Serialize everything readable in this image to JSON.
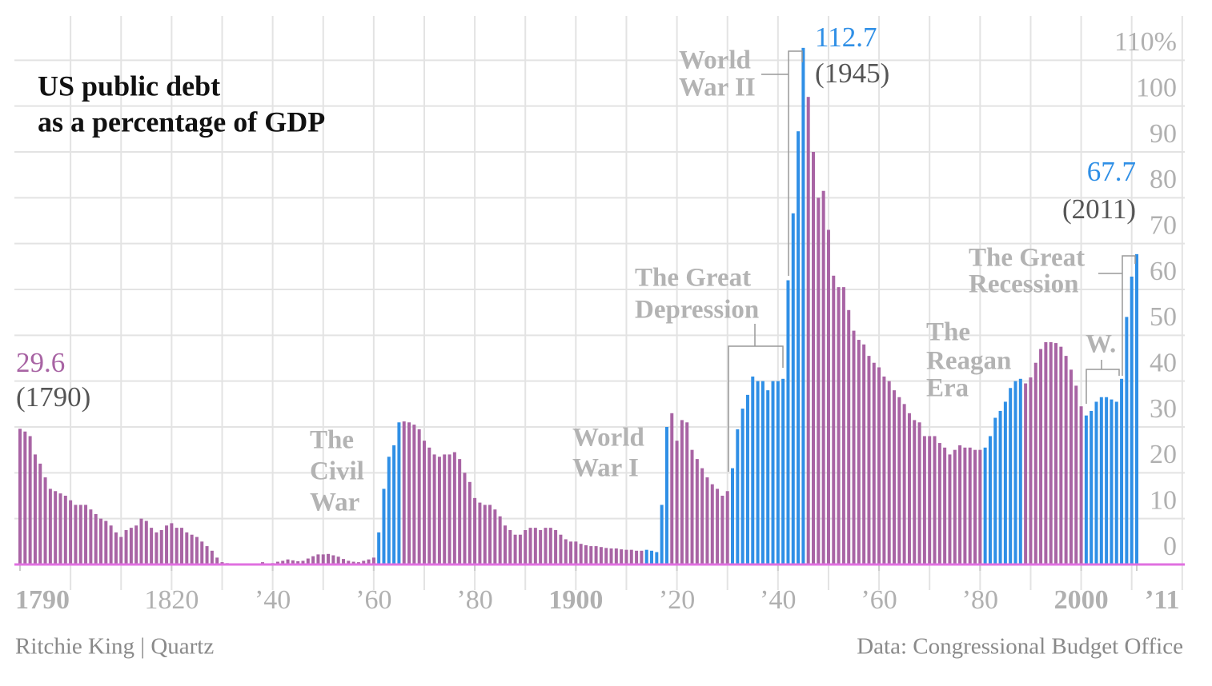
{
  "chart_data": {
    "type": "bar",
    "title": [
      "US public debt",
      "as a percentage of GDP"
    ],
    "source_left": "Ritchie King | Quartz",
    "source_right": "Data: Congressional Budget Office",
    "color": "#a864a4",
    "highlight_color": "#2f8fe6",
    "baseline_color": "#e070e0",
    "highlights": [
      {
        "from": 1861,
        "to": 1865
      },
      {
        "from": 1914,
        "to": 1918
      },
      {
        "from": 1931,
        "to": 1945
      },
      {
        "from": 1981,
        "to": 1988
      },
      {
        "from": 2001,
        "to": 2011
      }
    ],
    "x": [
      1790,
      1791,
      1792,
      1793,
      1794,
      1795,
      1796,
      1797,
      1798,
      1799,
      1800,
      1801,
      1802,
      1803,
      1804,
      1805,
      1806,
      1807,
      1808,
      1809,
      1810,
      1811,
      1812,
      1813,
      1814,
      1815,
      1816,
      1817,
      1818,
      1819,
      1820,
      1821,
      1822,
      1823,
      1824,
      1825,
      1826,
      1827,
      1828,
      1829,
      1830,
      1831,
      1832,
      1833,
      1834,
      1835,
      1836,
      1837,
      1838,
      1839,
      1840,
      1841,
      1842,
      1843,
      1844,
      1845,
      1846,
      1847,
      1848,
      1849,
      1850,
      1851,
      1852,
      1853,
      1854,
      1855,
      1856,
      1857,
      1858,
      1859,
      1860,
      1861,
      1862,
      1863,
      1864,
      1865,
      1866,
      1867,
      1868,
      1869,
      1870,
      1871,
      1872,
      1873,
      1874,
      1875,
      1876,
      1877,
      1878,
      1879,
      1880,
      1881,
      1882,
      1883,
      1884,
      1885,
      1886,
      1887,
      1888,
      1889,
      1890,
      1891,
      1892,
      1893,
      1894,
      1895,
      1896,
      1897,
      1898,
      1899,
      1900,
      1901,
      1902,
      1903,
      1904,
      1905,
      1906,
      1907,
      1908,
      1909,
      1910,
      1911,
      1912,
      1913,
      1914,
      1915,
      1916,
      1917,
      1918,
      1919,
      1920,
      1921,
      1922,
      1923,
      1924,
      1925,
      1926,
      1927,
      1928,
      1929,
      1930,
      1931,
      1932,
      1933,
      1934,
      1935,
      1936,
      1937,
      1938,
      1939,
      1940,
      1941,
      1942,
      1943,
      1944,
      1945,
      1946,
      1947,
      1948,
      1949,
      1950,
      1951,
      1952,
      1953,
      1954,
      1955,
      1956,
      1957,
      1958,
      1959,
      1960,
      1961,
      1962,
      1963,
      1964,
      1965,
      1966,
      1967,
      1968,
      1969,
      1970,
      1971,
      1972,
      1973,
      1974,
      1975,
      1976,
      1977,
      1978,
      1979,
      1980,
      1981,
      1982,
      1983,
      1984,
      1985,
      1986,
      1987,
      1988,
      1989,
      1990,
      1991,
      1992,
      1993,
      1994,
      1995,
      1996,
      1997,
      1998,
      1999,
      2000,
      2001,
      2002,
      2003,
      2004,
      2005,
      2006,
      2007,
      2008,
      2009,
      2010,
      2011
    ],
    "values": [
      29.6,
      29,
      28,
      24,
      22,
      19,
      16.5,
      16,
      15.5,
      15,
      14,
      13,
      13,
      13,
      12,
      11,
      10,
      9.5,
      8.5,
      7,
      6,
      7.5,
      8,
      8.5,
      10,
      9.5,
      8,
      7,
      7.5,
      8.5,
      9,
      8,
      8,
      7,
      6.5,
      6,
      5,
      4,
      3,
      1.5,
      0.5,
      0.3,
      0.2,
      0.1,
      0,
      0,
      0,
      0.1,
      0.5,
      0.2,
      0.3,
      0.6,
      0.8,
      1.1,
      0.9,
      0.7,
      0.8,
      1.3,
      1.8,
      2.2,
      2.2,
      2.3,
      2,
      1.7,
      1.2,
      0.8,
      0.6,
      0.5,
      0.8,
      1.1,
      1.5,
      7,
      16.5,
      23.5,
      26,
      31,
      31.2,
      31,
      30.5,
      29.5,
      27,
      25.5,
      24,
      23.5,
      24,
      24,
      24.5,
      23,
      20,
      18,
      14.5,
      13.5,
      13,
      13,
      12,
      10.5,
      8.5,
      7.5,
      6.5,
      6.5,
      7.5,
      8,
      8,
      7.5,
      8,
      8,
      7.5,
      6.5,
      5.5,
      5,
      5,
      4.5,
      4.2,
      4,
      4,
      3.8,
      3.6,
      3.5,
      3.5,
      3.3,
      3.2,
      3.2,
      3,
      3,
      3.2,
      3,
      2.7,
      13,
      30,
      33,
      27,
      31.5,
      31,
      25,
      23,
      21,
      19,
      17.5,
      16.5,
      15,
      16,
      21,
      29.5,
      34,
      37,
      41,
      40,
      40,
      38,
      40,
      40,
      40.5,
      62,
      76.6,
      94.5,
      112.7,
      102,
      90,
      80,
      81.5,
      73,
      63,
      60.5,
      60.5,
      55.5,
      51,
      49,
      48,
      45.5,
      44,
      43,
      41,
      40,
      38,
      36.5,
      35,
      33,
      31.5,
      31,
      28,
      28,
      28,
      26.5,
      25.5,
      24,
      25,
      26,
      25.5,
      25.5,
      25,
      25,
      25.5,
      28,
      32,
      33.5,
      35.5,
      38.5,
      40,
      40.5,
      39.5,
      40.8,
      44,
      47,
      48.5,
      48.5,
      48.3,
      47.5,
      45.5,
      42.5,
      39,
      34.5,
      32.5,
      33.5,
      35.5,
      36.5,
      36.5,
      36,
      35.5,
      40.5,
      54,
      62.8,
      67.7
    ],
    "year_labels": [
      "(1790)",
      "(1945)",
      "(2011)"
    ],
    "xlim": [
      1790,
      2011
    ],
    "xticks": [
      {
        "value": 1790,
        "label": "1790"
      },
      {
        "value": 1820,
        "label": "1820"
      },
      {
        "value": 1840,
        "label": "’40"
      },
      {
        "value": 1860,
        "label": "’60"
      },
      {
        "value": 1880,
        "label": "’80"
      },
      {
        "value": 1900,
        "label": "1900"
      },
      {
        "value": 1920,
        "label": "’20"
      },
      {
        "value": 1940,
        "label": "’40"
      },
      {
        "value": 1960,
        "label": "’60"
      },
      {
        "value": 1980,
        "label": "’80"
      },
      {
        "value": 2000,
        "label": "2000"
      },
      {
        "value": 2011,
        "label": "’11"
      }
    ],
    "xgrid": [
      1800,
      1810,
      1820,
      1830,
      1840,
      1850,
      1860,
      1870,
      1880,
      1890,
      1900,
      1910,
      1920,
      1930,
      1940,
      1950,
      1960,
      1970,
      1980,
      1990,
      2000,
      2010,
      2020
    ],
    "ylim": [
      0,
      120
    ],
    "yticks": [
      0,
      10,
      20,
      30,
      40,
      50,
      60,
      70,
      80,
      90,
      100,
      {
        "value": 110,
        "label": "110%"
      }
    ],
    "grid": true,
    "annotations": [
      {
        "lines": [
          "World",
          "War II"
        ]
      },
      {
        "lines": [
          "The Great",
          "Depression"
        ]
      },
      {
        "lines": [
          "The",
          "Civil",
          "War"
        ]
      },
      {
        "lines": [
          "World",
          "War I"
        ]
      },
      {
        "lines": [
          "The",
          "Reagan",
          "Era"
        ]
      },
      {
        "lines": [
          "W."
        ]
      },
      {
        "lines": [
          "The Great",
          "Recession"
        ]
      }
    ]
  }
}
